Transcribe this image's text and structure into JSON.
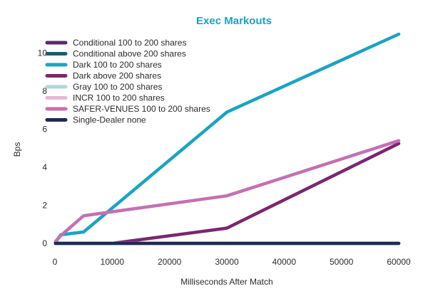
{
  "colors": {
    "title": "#1aa3c4",
    "axis": "#2b2b2b",
    "zero_line": "#1e2a55"
  },
  "chart_data": {
    "type": "line",
    "title": "Exec Markouts",
    "xlabel": "Milliseconds After  Match",
    "ylabel": "Bps",
    "xlim": [
      0,
      60000
    ],
    "ylim": [
      0,
      11
    ],
    "xticks": [
      0,
      10000,
      20000,
      30000,
      40000,
      50000,
      60000
    ],
    "yticks": [
      0,
      2,
      4,
      6,
      8,
      10
    ],
    "grid": false,
    "legend_position": "top-left",
    "series": [
      {
        "name": "Conditional 100 to 200 shares",
        "color": "#5a2a6e",
        "x": [
          100,
          1000,
          5000,
          30000,
          60000
        ],
        "y": [
          0,
          0,
          0,
          0,
          0
        ]
      },
      {
        "name": "Conditional above 200 shares",
        "color": "#1d5c73",
        "x": [
          100,
          1000,
          5000,
          30000,
          60000
        ],
        "y": [
          0,
          0,
          0,
          0,
          0
        ]
      },
      {
        "name": "Dark 100 to 200 shares",
        "color": "#1aa3c4",
        "x": [
          100,
          1000,
          5000,
          30000,
          60000
        ],
        "y": [
          0.05,
          0.45,
          0.6,
          6.9,
          11.0
        ]
      },
      {
        "name": "Dark above 200 shares",
        "color": "#7b2670",
        "x": [
          100,
          1000,
          5000,
          10000,
          30000,
          60000
        ],
        "y": [
          0,
          0,
          0,
          0,
          0.8,
          5.25
        ]
      },
      {
        "name": "Gray 100 to 200 shares",
        "color": "#a8dbe4",
        "x": [
          100,
          1000,
          5000,
          30000,
          60000
        ],
        "y": [
          0,
          0,
          0,
          0,
          0
        ]
      },
      {
        "name": "INCR 100 to 200 shares",
        "color": "#e6b8d6",
        "x": [
          100,
          1000,
          5000,
          30000,
          60000
        ],
        "y": [
          0,
          0,
          0,
          0,
          0
        ]
      },
      {
        "name": "SAFER-VENUES 100 to 200 shares",
        "color": "#c470b2",
        "x": [
          100,
          1000,
          5000,
          30000,
          60000
        ],
        "y": [
          0.1,
          0.4,
          1.45,
          2.5,
          5.4
        ]
      },
      {
        "name": "Single-Dealer none",
        "color": "#1e2a55",
        "x": [
          100,
          1000,
          5000,
          30000,
          60000
        ],
        "y": [
          0,
          0,
          0,
          0,
          0
        ]
      }
    ]
  }
}
